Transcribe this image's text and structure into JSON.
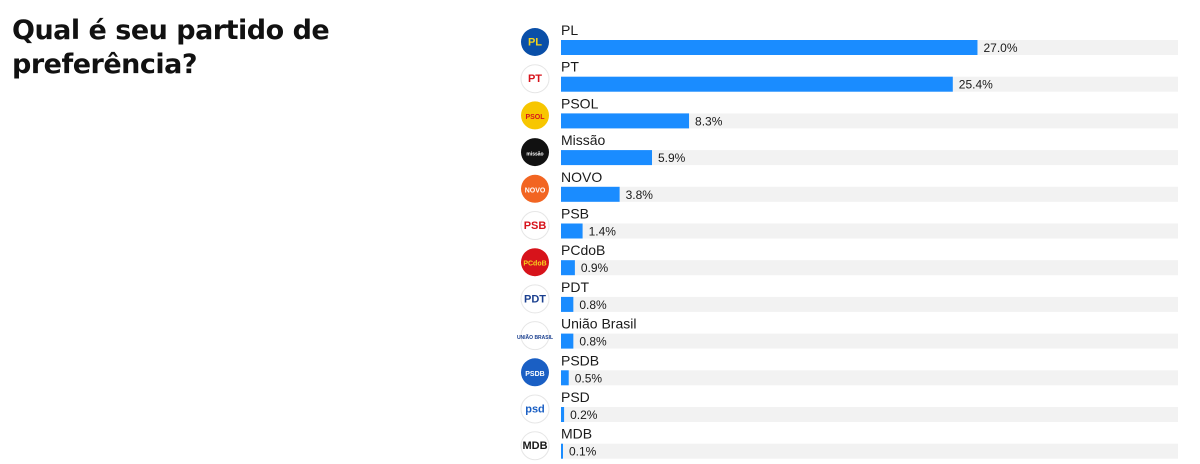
{
  "chart_data": {
    "type": "bar",
    "orientation": "horizontal",
    "title": "Qual é seu partido de preferência?",
    "categories": [
      "PL",
      "PT",
      "PSOL",
      "Missão",
      "NOVO",
      "PSB",
      "PCdoB",
      "PDT",
      "União Brasil",
      "PSDB",
      "PSD",
      "MDB"
    ],
    "values": [
      27.0,
      25.4,
      8.3,
      5.9,
      3.8,
      1.4,
      0.9,
      0.8,
      0.8,
      0.5,
      0.2,
      0.1
    ],
    "value_labels": [
      "27.0%",
      "25.4%",
      "8.3%",
      "5.9%",
      "3.8%",
      "1.4%",
      "0.9%",
      "0.8%",
      "0.8%",
      "0.5%",
      "0.2%",
      "0.1%"
    ],
    "xlim": [
      0,
      40
    ],
    "unit": "%",
    "logos": [
      {
        "name": "pl-logo",
        "text": "PL",
        "bg": "#0a4fa8",
        "fg": "#f3d21c"
      },
      {
        "name": "pt-logo",
        "text": "PT",
        "bg": "#ffffff",
        "fg": "#d7131b"
      },
      {
        "name": "psol-logo",
        "text": "PSOL",
        "bg": "#f7c600",
        "fg": "#d7131b"
      },
      {
        "name": "missao-logo",
        "text": "missão",
        "bg": "#111111",
        "fg": "#ffffff"
      },
      {
        "name": "novo-logo",
        "text": "NOVO",
        "bg": "#f26522",
        "fg": "#ffffff"
      },
      {
        "name": "psb-logo",
        "text": "PSB",
        "bg": "#ffffff",
        "fg": "#d7131b"
      },
      {
        "name": "pcdob-logo",
        "text": "PCdoB",
        "bg": "#d7131b",
        "fg": "#f7d21c"
      },
      {
        "name": "pdt-logo",
        "text": "PDT",
        "bg": "#ffffff",
        "fg": "#1a3f8f"
      },
      {
        "name": "uniao-brasil-logo",
        "text": "UNIÃO BRASIL",
        "bg": "#ffffff",
        "fg": "#1a3f8f"
      },
      {
        "name": "psdb-logo",
        "text": "PSDB",
        "bg": "#1a5fc4",
        "fg": "#ffffff"
      },
      {
        "name": "psd-logo",
        "text": "psd",
        "bg": "#ffffff",
        "fg": "#1a5fc4"
      },
      {
        "name": "mdb-logo",
        "text": "MDB",
        "bg": "#ffffff",
        "fg": "#1a1a1a"
      }
    ]
  },
  "colors": {
    "bar": "#1a8cff",
    "track": "#f2f2f2",
    "text": "#1a1a1a"
  }
}
